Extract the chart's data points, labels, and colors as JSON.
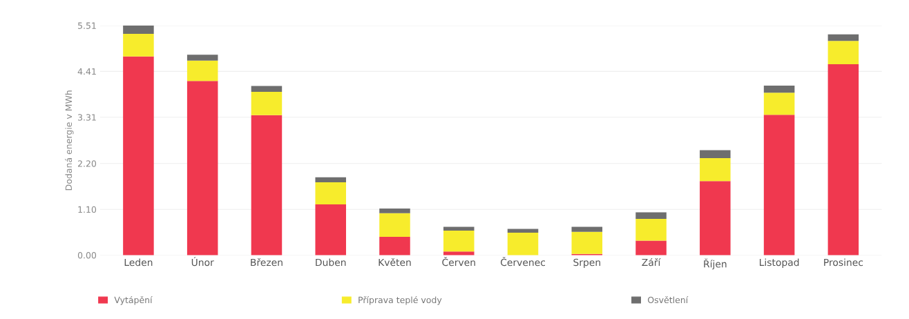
{
  "chart_data": {
    "type": "bar",
    "stacked": true,
    "ylabel": "Dodaná energie v MWh",
    "categories": [
      "Leden",
      "Únor",
      "Březen",
      "Duben",
      "Květen",
      "Červen",
      "Červenec",
      "Srpen",
      "Září",
      "Říjen",
      "Listopad",
      "Prosinec"
    ],
    "series": [
      {
        "name": "Vytápění",
        "color": "#f0384f",
        "values": [
          4.77,
          4.18,
          3.36,
          1.22,
          0.44,
          0.09,
          0.0,
          0.03,
          0.35,
          1.78,
          3.37,
          4.58
        ]
      },
      {
        "name": "Příprava teplé vody",
        "color": "#f7ec2c",
        "values": [
          0.54,
          0.49,
          0.56,
          0.53,
          0.57,
          0.5,
          0.54,
          0.53,
          0.52,
          0.55,
          0.53,
          0.56
        ]
      },
      {
        "name": "Osvětlení",
        "color": "#6e6e6e",
        "values": [
          0.2,
          0.14,
          0.14,
          0.12,
          0.11,
          0.09,
          0.09,
          0.12,
          0.16,
          0.19,
          0.17,
          0.16
        ]
      }
    ],
    "ylim": [
      0,
      5.51
    ],
    "yticks": [
      {
        "value": 0,
        "label": "0.00"
      },
      {
        "value": 1.1,
        "label": "1.10"
      },
      {
        "value": 2.2,
        "label": "2.20"
      },
      {
        "value": 3.31,
        "label": "3.31"
      },
      {
        "value": 4.41,
        "label": "4.41"
      },
      {
        "value": 5.51,
        "label": "5.51"
      }
    ],
    "grid": "y",
    "legend": "bottom"
  }
}
